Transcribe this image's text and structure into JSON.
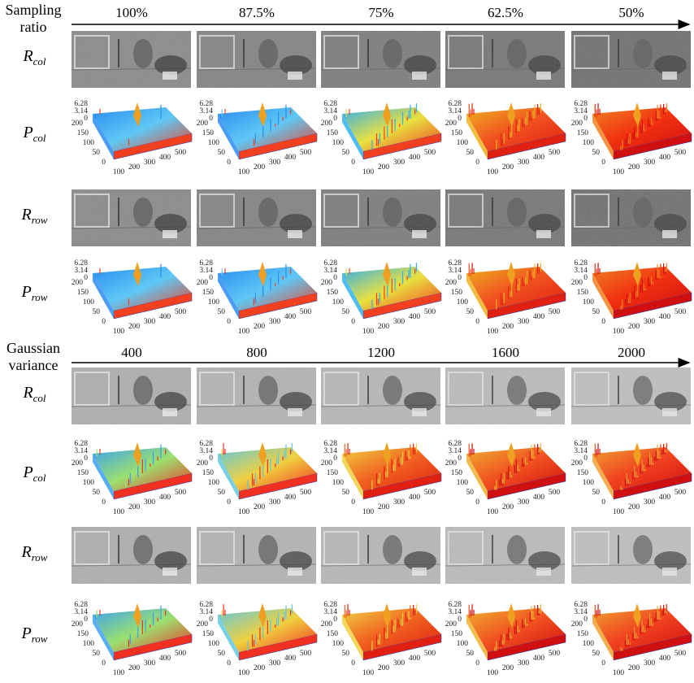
{
  "sections": [
    {
      "title": "Sampling ratio",
      "columns": [
        "100%",
        "87.5%",
        "75%",
        "62.5%",
        "50%"
      ],
      "rows": [
        {
          "symbol": "R",
          "subscript": "col"
        },
        {
          "symbol": "P",
          "subscript": "col"
        },
        {
          "symbol": "R",
          "subscript": "row"
        },
        {
          "symbol": "P",
          "subscript": "row"
        }
      ]
    },
    {
      "title": "Gaussian variance",
      "columns": [
        "400",
        "800",
        "1200",
        "1600",
        "2000"
      ],
      "rows": [
        {
          "symbol": "R",
          "subscript": "col"
        },
        {
          "symbol": "P",
          "subscript": "col"
        },
        {
          "symbol": "R",
          "subscript": "row"
        },
        {
          "symbol": "P",
          "subscript": "row"
        }
      ]
    }
  ],
  "plot_axes": {
    "z_ticks": [
      "6.28",
      "3.14",
      "0"
    ],
    "y_ticks": [
      "200",
      "150",
      "100",
      "50",
      "0"
    ],
    "x_ticks": [
      "100",
      "200",
      "300",
      "400",
      "500"
    ]
  }
}
